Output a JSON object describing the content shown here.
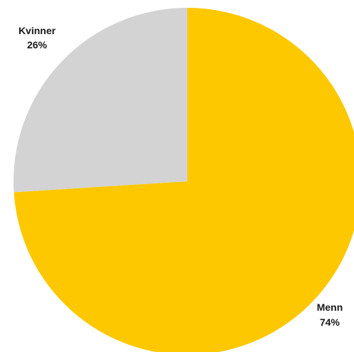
{
  "chart_data": {
    "type": "pie",
    "title": "",
    "slices": [
      {
        "label": "Menn",
        "value": 74,
        "value_label": "74%",
        "color": "#FDC800"
      },
      {
        "label": "Kvinner",
        "value": 26,
        "value_label": "26%",
        "color": "#D3D3D3"
      }
    ],
    "start": "12 o'clock",
    "direction": "clockwise",
    "legend": "none",
    "labels": "outside slice"
  }
}
